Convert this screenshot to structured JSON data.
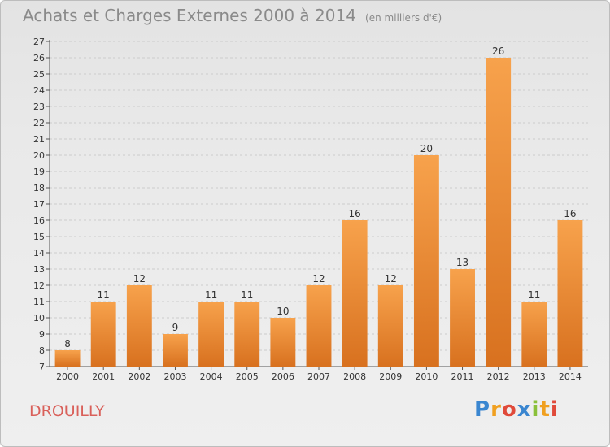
{
  "title": "Achats et Charges Externes 2000 à 2014",
  "unit": "(en milliers d'€)",
  "place": "DROUILLY",
  "logo": {
    "text": "Proxiti",
    "letters": [
      {
        "char": "P",
        "color": "#3a86d0"
      },
      {
        "char": "r",
        "color": "#f0a020"
      },
      {
        "char": "o",
        "color": "#e04a3a"
      },
      {
        "char": "x",
        "color": "#3a86d0"
      },
      {
        "char": "i",
        "color": "#8ac03a"
      },
      {
        "char": "t",
        "color": "#f0a020"
      },
      {
        "char": "i",
        "color": "#e04a3a"
      }
    ]
  },
  "colors": {
    "bar_top": "#f7a24c",
    "bar_bottom": "#d8711f",
    "axis": "#555555",
    "grid": "#cccccc",
    "text": "#333333"
  },
  "chart_data": {
    "type": "bar",
    "categories": [
      "2000",
      "2001",
      "2002",
      "2003",
      "2004",
      "2005",
      "2006",
      "2007",
      "2008",
      "2009",
      "2010",
      "2011",
      "2012",
      "2013",
      "2014"
    ],
    "values": [
      8,
      11,
      12,
      9,
      11,
      11,
      10,
      12,
      16,
      12,
      20,
      13,
      26,
      11,
      16
    ],
    "ylim": [
      7,
      27
    ],
    "yticks": [
      7,
      8,
      9,
      10,
      11,
      12,
      13,
      14,
      15,
      16,
      17,
      18,
      19,
      20,
      21,
      22,
      23,
      24,
      25,
      26,
      27
    ],
    "xlabel": "",
    "ylabel": "",
    "grid": "horizontal-dashed",
    "data_labels": true
  }
}
